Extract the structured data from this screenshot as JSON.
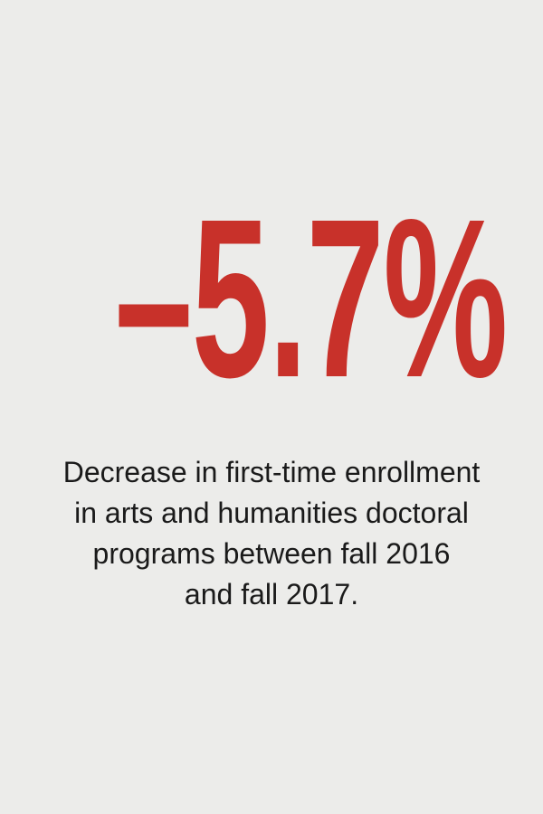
{
  "stat": {
    "value": "–5.7%"
  },
  "caption": {
    "lines": [
      "Decrease in first-time enrollment",
      "in arts and humanities doctoral",
      "programs between fall 2016",
      "and fall 2017."
    ]
  },
  "colors": {
    "background": "#ececea",
    "accent": "#c8312a",
    "text": "#1a1a1a"
  }
}
